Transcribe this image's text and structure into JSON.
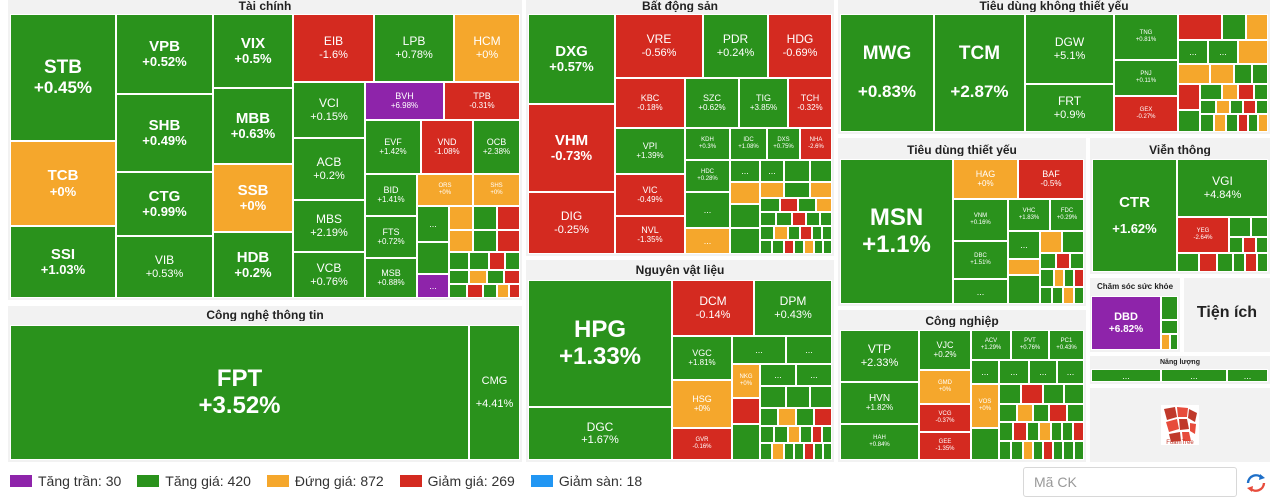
{
  "sectors": {
    "finance": "Tài chính",
    "realestate": "Bất động sản",
    "consumer_nonessential": "Tiêu dùng không thiết yếu",
    "consumer_essential": "Tiêu dùng thiết yếu",
    "tech": "Công nghệ thông tin",
    "materials": "Nguyên vật liệu",
    "industrial": "Công nghiệp",
    "telecom": "Viễn thông",
    "healthcare": "Chăm sóc sức khỏe",
    "utilities": "Tiện ích",
    "energy": "Năng lượng"
  },
  "tiles": {
    "STB": {
      "symbol": "STB",
      "change": "+0.45%"
    },
    "TCB": {
      "symbol": "TCB",
      "change": "+0%"
    },
    "SSI": {
      "symbol": "SSI",
      "change": "+1.03%"
    },
    "VPB": {
      "symbol": "VPB",
      "change": "+0.52%"
    },
    "SHB": {
      "symbol": "SHB",
      "change": "+0.49%"
    },
    "CTG": {
      "symbol": "CTG",
      "change": "+0.99%"
    },
    "VIB": {
      "symbol": "VIB",
      "change": "+0.53%"
    },
    "VIX": {
      "symbol": "VIX",
      "change": "+0.5%"
    },
    "MBB": {
      "symbol": "MBB",
      "change": "+0.63%"
    },
    "SSB": {
      "symbol": "SSB",
      "change": "+0%"
    },
    "HDB": {
      "symbol": "HDB",
      "change": "+0.2%"
    },
    "EIB": {
      "symbol": "EIB",
      "change": "-1.6%"
    },
    "LPB": {
      "symbol": "LPB",
      "change": "+0.78%"
    },
    "HCM": {
      "symbol": "HCM",
      "change": "+0%"
    },
    "VCI": {
      "symbol": "VCI",
      "change": "+0.15%"
    },
    "BVH": {
      "symbol": "BVH",
      "change": "+6.98%"
    },
    "TPB": {
      "symbol": "TPB",
      "change": "-0.31%"
    },
    "ACB": {
      "symbol": "ACB",
      "change": "+0.2%"
    },
    "EVF": {
      "symbol": "EVF",
      "change": "+1.42%"
    },
    "VND": {
      "symbol": "VND",
      "change": "-1.08%"
    },
    "OCB": {
      "symbol": "OCB",
      "change": "+2.38%"
    },
    "MBS": {
      "symbol": "MBS",
      "change": "+2.19%"
    },
    "BID": {
      "symbol": "BID",
      "change": "+1.41%"
    },
    "ORS": {
      "symbol": "ORS",
      "change": "+0%"
    },
    "SHS": {
      "symbol": "SHS",
      "change": "+0%"
    },
    "VCB": {
      "symbol": "VCB",
      "change": "+0.76%"
    },
    "FTS": {
      "symbol": "FTS",
      "change": "+0.72%"
    },
    "MSB": {
      "symbol": "MSB",
      "change": "+0.88%"
    },
    "FPT": {
      "symbol": "FPT",
      "change": "+3.52%"
    },
    "CMG": {
      "symbol": "CMG",
      "change": "+4.41%"
    },
    "DXG": {
      "symbol": "DXG",
      "change": "+0.57%"
    },
    "VHM": {
      "symbol": "VHM",
      "change": "-0.73%"
    },
    "DIG": {
      "symbol": "DIG",
      "change": "-0.25%"
    },
    "VRE": {
      "symbol": "VRE",
      "change": "-0.56%"
    },
    "PDR": {
      "symbol": "PDR",
      "change": "+0.24%"
    },
    "HDG": {
      "symbol": "HDG",
      "change": "-0.69%"
    },
    "KBC": {
      "symbol": "KBC",
      "change": "-0.18%"
    },
    "SZC": {
      "symbol": "SZC",
      "change": "+0.62%"
    },
    "TIG": {
      "symbol": "TIG",
      "change": "+3.85%"
    },
    "TCH": {
      "symbol": "TCH",
      "change": "-0.32%"
    },
    "VPI": {
      "symbol": "VPI",
      "change": "+1.39%"
    },
    "KDH": {
      "symbol": "KDH",
      "change": "+0.3%"
    },
    "IDC": {
      "symbol": "IDC",
      "change": "+1.08%"
    },
    "DXS": {
      "symbol": "DXS",
      "change": "+0.75%"
    },
    "NHA": {
      "symbol": "NHA",
      "change": "-2.6%"
    },
    "VIC": {
      "symbol": "VIC",
      "change": "-0.49%"
    },
    "HDC": {
      "symbol": "HDC",
      "change": "+0.28%"
    },
    "NVL": {
      "symbol": "NVL",
      "change": "-1.35%"
    },
    "HPG": {
      "symbol": "HPG",
      "change": "+1.33%"
    },
    "DGC": {
      "symbol": "DGC",
      "change": "+1.67%"
    },
    "DCM": {
      "symbol": "DCM",
      "change": "-0.14%"
    },
    "DPM": {
      "symbol": "DPM",
      "change": "+0.43%"
    },
    "VGC": {
      "symbol": "VGC",
      "change": "+1.81%"
    },
    "NKG": {
      "symbol": "NKG",
      "change": "+0%"
    },
    "HSG": {
      "symbol": "HSG",
      "change": "+0%"
    },
    "GVR": {
      "symbol": "GVR",
      "change": "-0.16%"
    },
    "MWG": {
      "symbol": "MWG",
      "change": "+0.83%"
    },
    "TCM": {
      "symbol": "TCM",
      "change": "+2.87%"
    },
    "DGW": {
      "symbol": "DGW",
      "change": "+5.1%"
    },
    "FRT": {
      "symbol": "FRT",
      "change": "+0.9%"
    },
    "TNG": {
      "symbol": "TNG",
      "change": "+0.81%"
    },
    "PNJ": {
      "symbol": "PNJ",
      "change": "+0.11%"
    },
    "GEX": {
      "symbol": "GEX",
      "change": "-0.27%"
    },
    "MSN": {
      "symbol": "MSN",
      "change": "+1.1%"
    },
    "HAG": {
      "symbol": "HAG",
      "change": "+0%"
    },
    "BAF": {
      "symbol": "BAF",
      "change": "-0.5%"
    },
    "VNM": {
      "symbol": "VNM",
      "change": "+0.16%"
    },
    "VHC": {
      "symbol": "VHC",
      "change": "+1.83%"
    },
    "FDC": {
      "symbol": "FDC",
      "change": "+0.29%"
    },
    "DBC": {
      "symbol": "DBC",
      "change": "+1.51%"
    },
    "VTP": {
      "symbol": "VTP",
      "change": "+2.33%"
    },
    "VJC": {
      "symbol": "VJC",
      "change": "+0.2%"
    },
    "ACV": {
      "symbol": "ACV",
      "change": "+1.29%"
    },
    "PVT": {
      "symbol": "PVT",
      "change": "+0.76%"
    },
    "PC1": {
      "symbol": "PC1",
      "change": "+0.43%"
    },
    "HVN": {
      "symbol": "HVN",
      "change": "+1.82%"
    },
    "GMD": {
      "symbol": "GMD",
      "change": "+0%"
    },
    "VOS": {
      "symbol": "VOS",
      "change": "+0%"
    },
    "HAH": {
      "symbol": "HAH",
      "change": "+0.84%"
    },
    "VCG": {
      "symbol": "VCG",
      "change": "-0.37%"
    },
    "GEE": {
      "symbol": "GEE",
      "change": "-1.35%"
    },
    "CTR": {
      "symbol": "CTR",
      "change": "+1.62%"
    },
    "VGI": {
      "symbol": "VGI",
      "change": "+4.84%"
    },
    "YEG": {
      "symbol": "YEG",
      "change": "-2.64%"
    },
    "DBD": {
      "symbol": "DBD",
      "change": "+6.82%"
    }
  },
  "more_label": "...",
  "legend": [
    {
      "label": "Tăng trần: 30",
      "color": "#8e24aa"
    },
    {
      "label": "Tăng giá: 420",
      "color": "#2a921c"
    },
    {
      "label": "Đứng giá: 872",
      "color": "#f5a72c"
    },
    {
      "label": "Giảm giá: 269",
      "color": "#d42a20"
    },
    {
      "label": "Giảm sàn: 18",
      "color": "#2196f3"
    }
  ],
  "search": {
    "placeholder": "Mã CK"
  },
  "logo_text": "FoamTree",
  "icons": {
    "refresh": "refresh-icon",
    "logo": "foamtree-logo-icon"
  },
  "colors": {
    "up": "#2a921c",
    "down": "#d42a20",
    "ref": "#f5a72c",
    "ceiling": "#8e24aa",
    "floor": "#2196f3"
  }
}
